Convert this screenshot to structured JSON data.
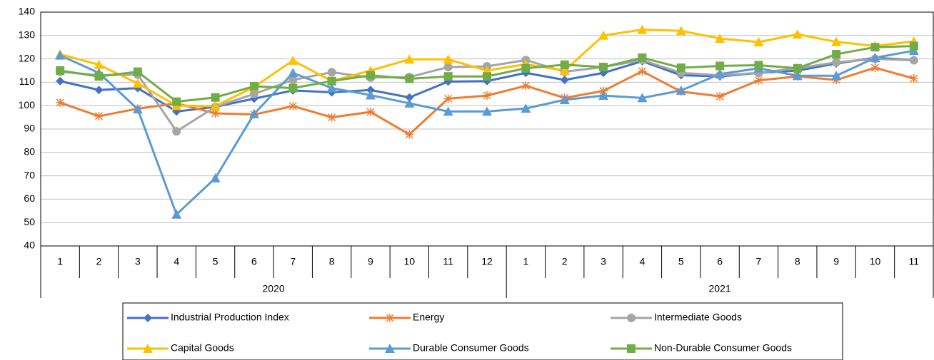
{
  "chart_data": {
    "type": "line",
    "categories": [
      "1",
      "2",
      "3",
      "4",
      "5",
      "6",
      "7",
      "8",
      "9",
      "10",
      "11",
      "12",
      "1",
      "2",
      "3",
      "4",
      "5",
      "6",
      "7",
      "8",
      "9",
      "10",
      "11"
    ],
    "category_groups": [
      {
        "name": "2020",
        "count": 12
      },
      {
        "name": "2021",
        "count": 11
      }
    ],
    "ylim": [
      40,
      140
    ],
    "yticks": [
      40,
      50,
      60,
      70,
      80,
      90,
      100,
      110,
      120,
      130,
      140
    ],
    "grid": true,
    "legend": "bottom",
    "series": [
      {
        "name": "Industrial Production Index",
        "color": "#4472c4",
        "marker": "diamond",
        "values": [
          110.5,
          106.7,
          107.5,
          97.5,
          99.5,
          103,
          106.5,
          105.7,
          106.7,
          103.5,
          110.3,
          110.5,
          114,
          111,
          114,
          119,
          113,
          112.5,
          114,
          115,
          118,
          120.5,
          119.5
        ]
      },
      {
        "name": "Energy",
        "color": "#ed7d31",
        "marker": "star",
        "values": [
          101.3,
          95.5,
          98.7,
          101,
          96.7,
          96.2,
          99.8,
          95,
          97.3,
          87.7,
          103,
          104.3,
          108.5,
          103.3,
          106.3,
          114.7,
          106,
          104,
          110.8,
          112.5,
          111,
          116.2,
          111.6
        ]
      },
      {
        "name": "Intermediate Goods",
        "color": "#a5a5a5",
        "marker": "circle",
        "values": [
          114.5,
          113,
          113.3,
          89,
          99.5,
          105,
          111,
          114.3,
          112,
          112.2,
          116.5,
          116.8,
          119.5,
          114.5,
          116.5,
          119.5,
          114,
          113,
          114,
          116,
          118.5,
          120,
          119.4
        ]
      },
      {
        "name": "Capital Goods",
        "color": "#ffc000",
        "marker": "triangle",
        "values": [
          122,
          117.5,
          109.5,
          100,
          99.8,
          108,
          119.3,
          110.5,
          115,
          119.8,
          119.8,
          115,
          117.7,
          115,
          130,
          132.5,
          132,
          128.7,
          127.2,
          130.5,
          127.3,
          125.5,
          127.5
        ]
      },
      {
        "name": "Durable Consumer Goods",
        "color": "#5b9bd5",
        "marker": "triangle",
        "values": [
          121.5,
          114,
          98.5,
          53.5,
          69,
          96.5,
          114,
          107.5,
          104.5,
          101,
          97.5,
          97.5,
          98.8,
          102.5,
          104.3,
          103.3,
          106.5,
          113.5,
          116,
          112.8,
          112.8,
          120.5,
          123.5
        ]
      },
      {
        "name": "Non-Durable Consumer Goods",
        "color": "#70ad47",
        "marker": "square",
        "values": [
          115,
          112.5,
          114.5,
          101.7,
          103.5,
          108.3,
          107.5,
          110.5,
          113,
          111.5,
          112.5,
          112.5,
          116,
          117.5,
          116.5,
          120.5,
          116.2,
          117,
          117.3,
          116,
          122,
          125,
          125.5
        ]
      }
    ]
  }
}
